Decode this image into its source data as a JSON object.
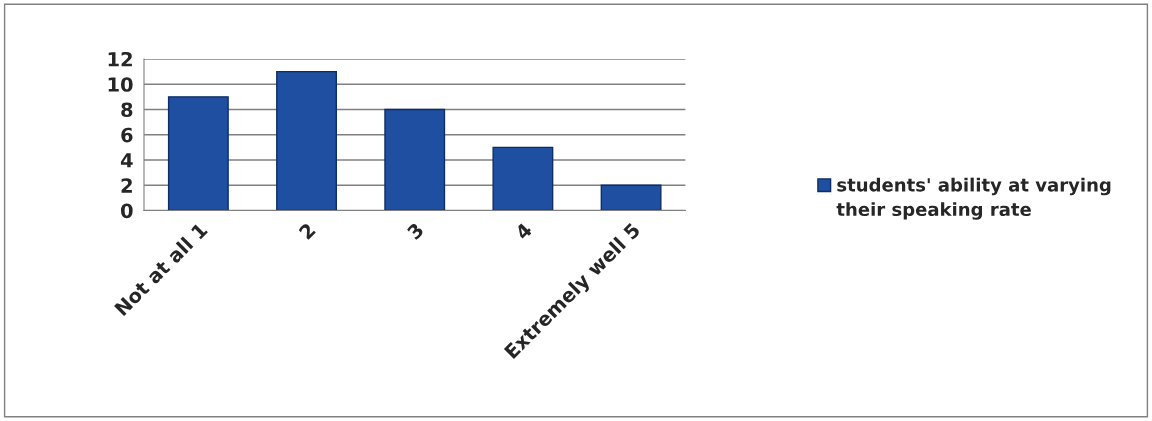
{
  "chart_data": {
    "type": "bar",
    "categories": [
      "Not at all 1",
      "2",
      "3",
      "4",
      "Extremely well 5"
    ],
    "series": [
      {
        "name": "students' ability at varying their speaking rate",
        "color": "#1f4fa0",
        "values": [
          9,
          11,
          8,
          5,
          2
        ]
      }
    ],
    "ylim": [
      0,
      12
    ],
    "yticks": [
      0,
      2,
      4,
      6,
      8,
      10,
      12
    ],
    "grid": "y",
    "legend": "right"
  }
}
